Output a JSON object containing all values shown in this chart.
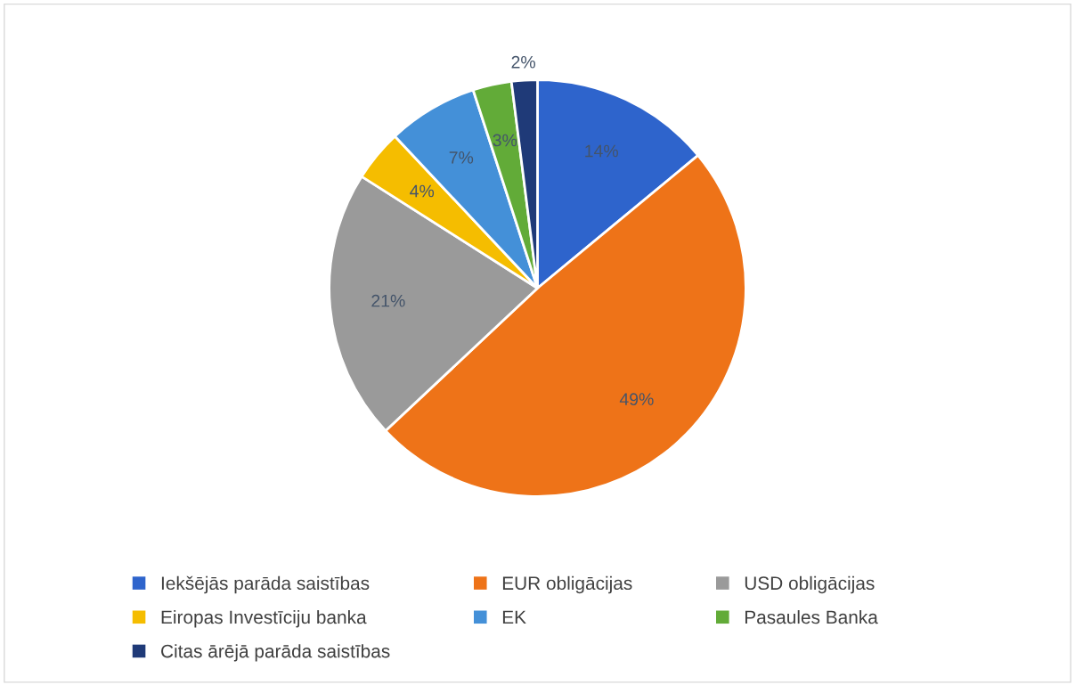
{
  "chart_data": {
    "type": "pie",
    "categories": [
      "Iekšējās parāda saistības",
      "EUR obligācijas",
      "USD obligācijas",
      "Eiropas Investīciju banka",
      "EK",
      "Pasaules Banka",
      "Citas ārējā parāda saistības"
    ],
    "values": [
      14,
      49,
      21,
      4,
      7,
      3,
      2
    ],
    "colors": [
      "#2e64cc",
      "#ee7318",
      "#9a9a9a",
      "#f5bd00",
      "#4490d8",
      "#62ab38",
      "#1f3a78"
    ],
    "value_labels": [
      "14%",
      "49%",
      "21%",
      "4%",
      "7%",
      "3%",
      "2%"
    ],
    "legend": "bottom"
  }
}
